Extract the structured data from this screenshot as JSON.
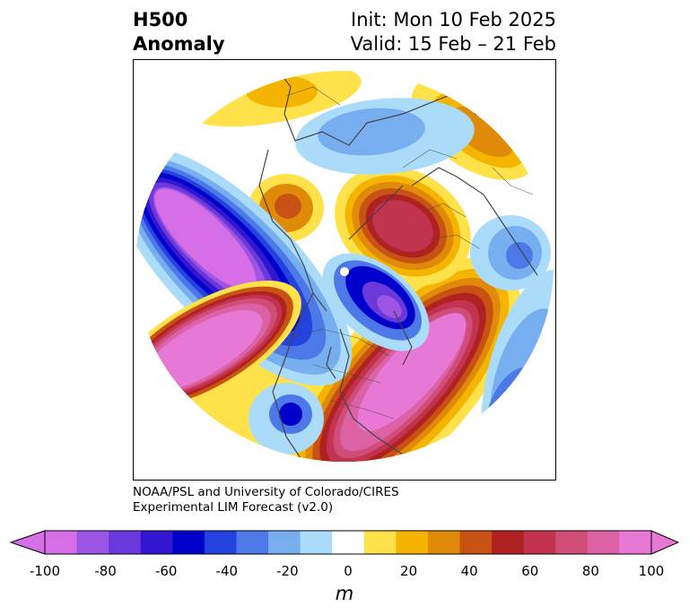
{
  "title": {
    "left_line1": "H500",
    "left_line2": "Anomaly",
    "right_line1": "Init: Mon 10 Feb 2025",
    "right_line2": "Valid: 15 Feb – 21 Feb"
  },
  "credit": {
    "line1": "NOAA/PSL and University of Colorado/CIRES",
    "line2": "Experimental LIM Forecast (v2.0)"
  },
  "colorbar": {
    "unit": "m",
    "ticks": [
      "-100",
      "-80",
      "-60",
      "-40",
      "-20",
      "0",
      "20",
      "40",
      "60",
      "80",
      "100"
    ],
    "levels": [
      -100,
      -90,
      -80,
      -70,
      -60,
      -50,
      -40,
      -30,
      -20,
      -10,
      10,
      20,
      30,
      40,
      50,
      60,
      70,
      80,
      90,
      100
    ],
    "colors": [
      "#d66ee8",
      "#9d55e3",
      "#6a38db",
      "#3317d0",
      "#0000cc",
      "#2442dd",
      "#4d79e8",
      "#77aef0",
      "#aadcfa",
      "#ffffff",
      "#ffe14a",
      "#f4b400",
      "#e08a0a",
      "#c85214",
      "#b02222",
      "#c1334f",
      "#d04d78",
      "#dc62a6",
      "#e878d6"
    ],
    "under_color": "#d66ee8",
    "over_color": "#e878d6"
  }
}
